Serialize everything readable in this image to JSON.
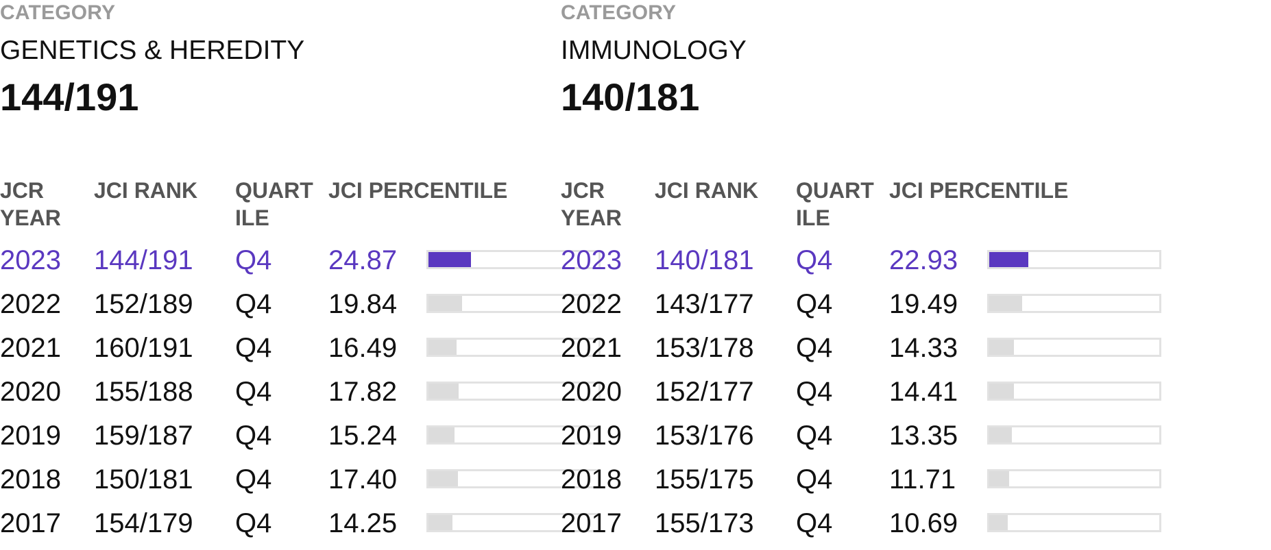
{
  "colors": {
    "accent": "#5a38c0",
    "category_label": "#9a9a9a",
    "header_text": "#555555",
    "bar_track_border": "#e2e2e2",
    "bar_fill_inactive": "#dcdcdc"
  },
  "headers": {
    "year": "JCR YEAR",
    "rank": "JCI RANK",
    "quartile": "QUARTILE",
    "percentile": "JCI PERCENTILE"
  },
  "panels": [
    {
      "category_label": "CATEGORY",
      "category_name": "GENETICS & HEREDITY",
      "rank": "144/191",
      "rows": [
        {
          "year": "2023",
          "rank": "144/191",
          "quartile": "Q4",
          "percentile": "24.87",
          "current": true
        },
        {
          "year": "2022",
          "rank": "152/189",
          "quartile": "Q4",
          "percentile": "19.84",
          "current": false
        },
        {
          "year": "2021",
          "rank": "160/191",
          "quartile": "Q4",
          "percentile": "16.49",
          "current": false
        },
        {
          "year": "2020",
          "rank": "155/188",
          "quartile": "Q4",
          "percentile": "17.82",
          "current": false
        },
        {
          "year": "2019",
          "rank": "159/187",
          "quartile": "Q4",
          "percentile": "15.24",
          "current": false
        },
        {
          "year": "2018",
          "rank": "150/181",
          "quartile": "Q4",
          "percentile": "17.40",
          "current": false
        },
        {
          "year": "2017",
          "rank": "154/179",
          "quartile": "Q4",
          "percentile": "14.25",
          "current": false
        }
      ]
    },
    {
      "category_label": "CATEGORY",
      "category_name": "IMMUNOLOGY",
      "rank": "140/181",
      "rows": [
        {
          "year": "2023",
          "rank": "140/181",
          "quartile": "Q4",
          "percentile": "22.93",
          "current": true
        },
        {
          "year": "2022",
          "rank": "143/177",
          "quartile": "Q4",
          "percentile": "19.49",
          "current": false
        },
        {
          "year": "2021",
          "rank": "153/178",
          "quartile": "Q4",
          "percentile": "14.33",
          "current": false
        },
        {
          "year": "2020",
          "rank": "152/177",
          "quartile": "Q4",
          "percentile": "14.41",
          "current": false
        },
        {
          "year": "2019",
          "rank": "153/176",
          "quartile": "Q4",
          "percentile": "13.35",
          "current": false
        },
        {
          "year": "2018",
          "rank": "155/175",
          "quartile": "Q4",
          "percentile": "11.71",
          "current": false
        },
        {
          "year": "2017",
          "rank": "155/173",
          "quartile": "Q4",
          "percentile": "10.69",
          "current": false
        }
      ]
    }
  ]
}
